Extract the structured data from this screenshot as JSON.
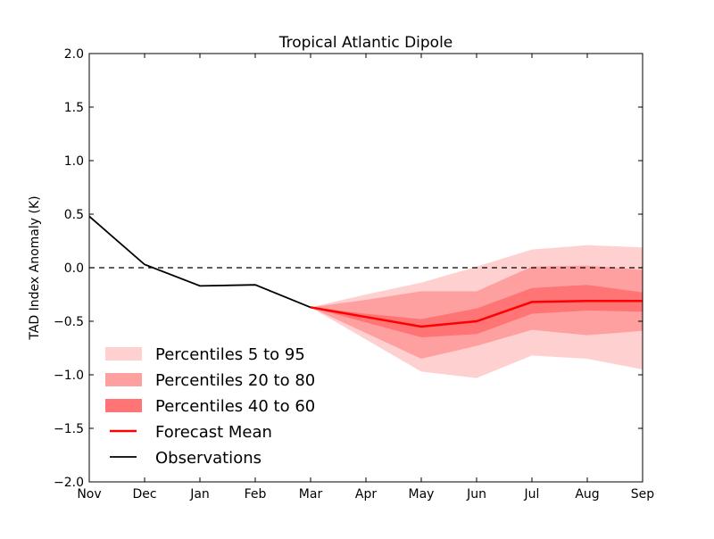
{
  "chart_data": {
    "type": "line",
    "title": "Tropical Atlantic Dipole",
    "xlabel": "",
    "ylabel": "TAD Index Anomaly (K)",
    "x": [
      "Nov",
      "Dec",
      "Jan",
      "Feb",
      "Mar",
      "Apr",
      "May",
      "Jun",
      "Jul",
      "Aug",
      "Sep"
    ],
    "ylim": [
      -2.0,
      2.0
    ],
    "yticks": [
      "2.0",
      "1.5",
      "1.0",
      "0.5",
      "0.0",
      "−0.5",
      "−1.0",
      "−1.5",
      "−2.0"
    ],
    "ytick_values": [
      2.0,
      1.5,
      1.0,
      0.5,
      0.0,
      -0.5,
      -1.0,
      -1.5,
      -2.0
    ],
    "grid": false,
    "zero_line": {
      "value": 0.0,
      "style": "dashed",
      "color": "#000000"
    },
    "legend_placement": "lower-left",
    "observations": {
      "name": "Observations",
      "color": "#000000",
      "x": [
        "Nov",
        "Dec",
        "Jan",
        "Feb",
        "Mar"
      ],
      "values": [
        0.48,
        0.03,
        -0.17,
        -0.16,
        -0.37
      ]
    },
    "forecast_mean": {
      "name": "Forecast Mean",
      "color": "#ff0000",
      "x": [
        "Mar",
        "Apr",
        "May",
        "Jun",
        "Jul",
        "Aug",
        "Sep"
      ],
      "values": [
        -0.37,
        -0.46,
        -0.55,
        -0.5,
        -0.32,
        -0.31,
        -0.31
      ]
    },
    "bands": [
      {
        "name": "Percentiles 5 to 95",
        "color": "#ffd0d0",
        "x": [
          "Mar",
          "Apr",
          "May",
          "Jun",
          "Jul",
          "Aug",
          "Sep"
        ],
        "upper": [
          -0.37,
          -0.25,
          -0.14,
          0.01,
          0.17,
          0.21,
          0.19
        ],
        "lower": [
          -0.37,
          -0.67,
          -0.97,
          -1.03,
          -0.82,
          -0.85,
          -0.95
        ]
      },
      {
        "name": "Percentiles 20 to 80",
        "color": "#ffa0a0",
        "x": [
          "Mar",
          "Apr",
          "May",
          "Jun",
          "Jul",
          "Aug",
          "Sep"
        ],
        "upper": [
          -0.37,
          -0.3,
          -0.22,
          -0.22,
          0.01,
          0.02,
          -0.02
        ],
        "lower": [
          -0.37,
          -0.61,
          -0.85,
          -0.73,
          -0.58,
          -0.63,
          -0.59
        ]
      },
      {
        "name": "Percentiles 40 to 60",
        "color": "#ff7474",
        "x": [
          "Mar",
          "Apr",
          "May",
          "Jun",
          "Jul",
          "Aug",
          "Sep"
        ],
        "upper": [
          -0.37,
          -0.43,
          -0.48,
          -0.38,
          -0.19,
          -0.16,
          -0.23
        ],
        "lower": [
          -0.37,
          -0.51,
          -0.65,
          -0.62,
          -0.43,
          -0.4,
          -0.41
        ]
      }
    ],
    "legend": [
      {
        "label": "Percentiles 5 to 95",
        "kind": "patch",
        "color": "#ffd0d0"
      },
      {
        "label": "Percentiles 20 to 80",
        "kind": "patch",
        "color": "#ffa0a0"
      },
      {
        "label": "Percentiles 40 to 60",
        "kind": "patch",
        "color": "#ff7474"
      },
      {
        "label": "Forecast Mean",
        "kind": "line",
        "color": "#ff0000"
      },
      {
        "label": "Observations",
        "kind": "line",
        "color": "#000000"
      }
    ]
  }
}
